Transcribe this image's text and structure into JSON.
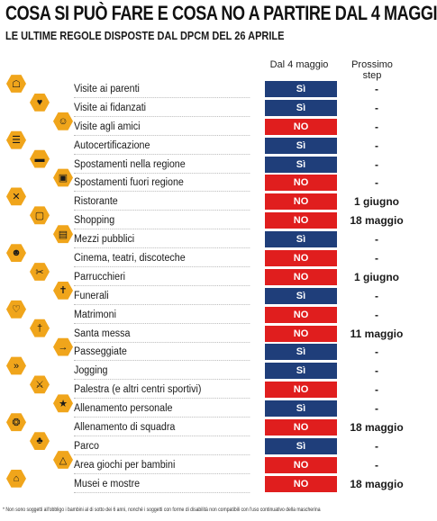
{
  "title": "COSA SI PUÒ FARE E COSA NO A PARTIRE DAL 4 MAGGIO",
  "subtitle": "LE ULTIME REGOLE DISPOSTE DAL DPCM DEL 26 APRILE",
  "columns": {
    "current": "Dal 4 maggio",
    "next": "Prossimo step"
  },
  "colors": {
    "si": "#1f3e7a",
    "no": "#e01e1e",
    "icon_bg": "#f0a51b"
  },
  "rows": [
    {
      "label": "Visite ai parenti",
      "status": "Sì",
      "next": "-",
      "icon": "family-icon"
    },
    {
      "label": "Visite ai fidanzati",
      "status": "Sì",
      "next": "-",
      "icon": "couple-icon"
    },
    {
      "label": "Visite agli amici",
      "status": "NO",
      "next": "-",
      "icon": "friends-icon"
    },
    {
      "label": "Autocertificazione",
      "status": "Sì",
      "next": "-",
      "icon": "document-icon"
    },
    {
      "label": "Spostamenti nella regione",
      "status": "Sì",
      "next": "-",
      "icon": "car-icon"
    },
    {
      "label": "Spostamenti fuori regione",
      "status": "NO",
      "next": "-",
      "icon": "train-icon"
    },
    {
      "label": "Ristorante",
      "status": "NO",
      "next": "1 giugno",
      "icon": "cutlery-icon"
    },
    {
      "label": "Shopping",
      "status": "NO",
      "next": "18 maggio",
      "icon": "shopping-bag-icon"
    },
    {
      "label": "Mezzi pubblici",
      "status": "Sì",
      "next": "-",
      "icon": "bus-icon"
    },
    {
      "label": "Cinema, teatri, discoteche",
      "status": "NO",
      "next": "-",
      "icon": "theater-masks-icon"
    },
    {
      "label": "Parrucchieri",
      "status": "NO",
      "next": "1 giugno",
      "icon": "scissors-icon"
    },
    {
      "label": "Funerali",
      "status": "Sì",
      "next": "-",
      "icon": "tombstone-icon"
    },
    {
      "label": "Matrimoni",
      "status": "NO",
      "next": "-",
      "icon": "wedding-icon"
    },
    {
      "label": "Santa messa",
      "status": "NO",
      "next": "11 maggio",
      "icon": "church-icon"
    },
    {
      "label": "Passeggiate",
      "status": "Sì",
      "next": "-",
      "icon": "walking-icon"
    },
    {
      "label": "Jogging",
      "status": "Sì",
      "next": "-",
      "icon": "running-icon"
    },
    {
      "label": "Palestra (e altri centri sportivi)",
      "status": "NO",
      "next": "-",
      "icon": "gym-icon"
    },
    {
      "label": "Allenamento personale",
      "status": "Sì",
      "next": "-",
      "icon": "training-icon"
    },
    {
      "label": "Allenamento di squadra",
      "status": "NO",
      "next": "18 maggio",
      "icon": "team-icon"
    },
    {
      "label": "Parco",
      "status": "Sì",
      "next": "-",
      "icon": "tree-icon"
    },
    {
      "label": "Area giochi per bambini",
      "status": "NO",
      "next": "-",
      "icon": "playground-icon"
    },
    {
      "label": "Musei e mostre",
      "status": "NO",
      "next": "18 maggio",
      "icon": "museum-icon"
    }
  ],
  "footnote": "* Non sono soggetti all'obbligo i bambini al di sotto dei 6 anni, nonché i soggetti con forme di disabilità non compatibili con l'uso continuativo della mascherina"
}
